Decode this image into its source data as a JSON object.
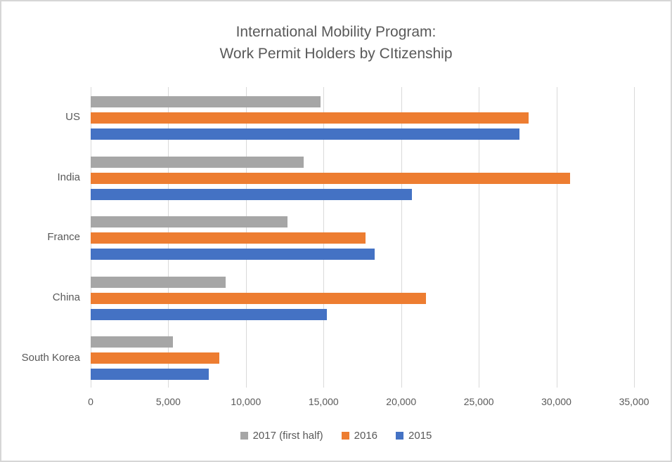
{
  "chart_data": {
    "type": "bar",
    "orientation": "horizontal",
    "title_lines": [
      "International Mobility Program:",
      "Work Permit Holders by CItizenship"
    ],
    "categories": [
      "US",
      "India",
      "France",
      "China",
      "South Korea"
    ],
    "series": [
      {
        "name": "2017 (first half)",
        "color": "#a6a6a6",
        "values": [
          14800,
          13700,
          12700,
          8700,
          5300
        ]
      },
      {
        "name": "2016",
        "color": "#ed7d31",
        "values": [
          28200,
          30900,
          17700,
          21600,
          8300
        ]
      },
      {
        "name": "2015",
        "color": "#4472c4",
        "values": [
          27600,
          20700,
          18300,
          15200,
          7600
        ]
      }
    ],
    "x_axis": {
      "min": 0,
      "max": 35000,
      "tick_step": 5000,
      "tick_labels": [
        "0",
        "5,000",
        "10,000",
        "15,000",
        "20,000",
        "25,000",
        "30,000",
        "35,000"
      ]
    },
    "legend": {
      "position": "bottom",
      "entries": [
        "2017 (first half)",
        "2016",
        "2015"
      ]
    },
    "grid": true,
    "colors": {
      "text": "#595959",
      "gridline": "#d9d9d9",
      "frame_border": "#d6d6d6",
      "background": "#ffffff"
    }
  }
}
